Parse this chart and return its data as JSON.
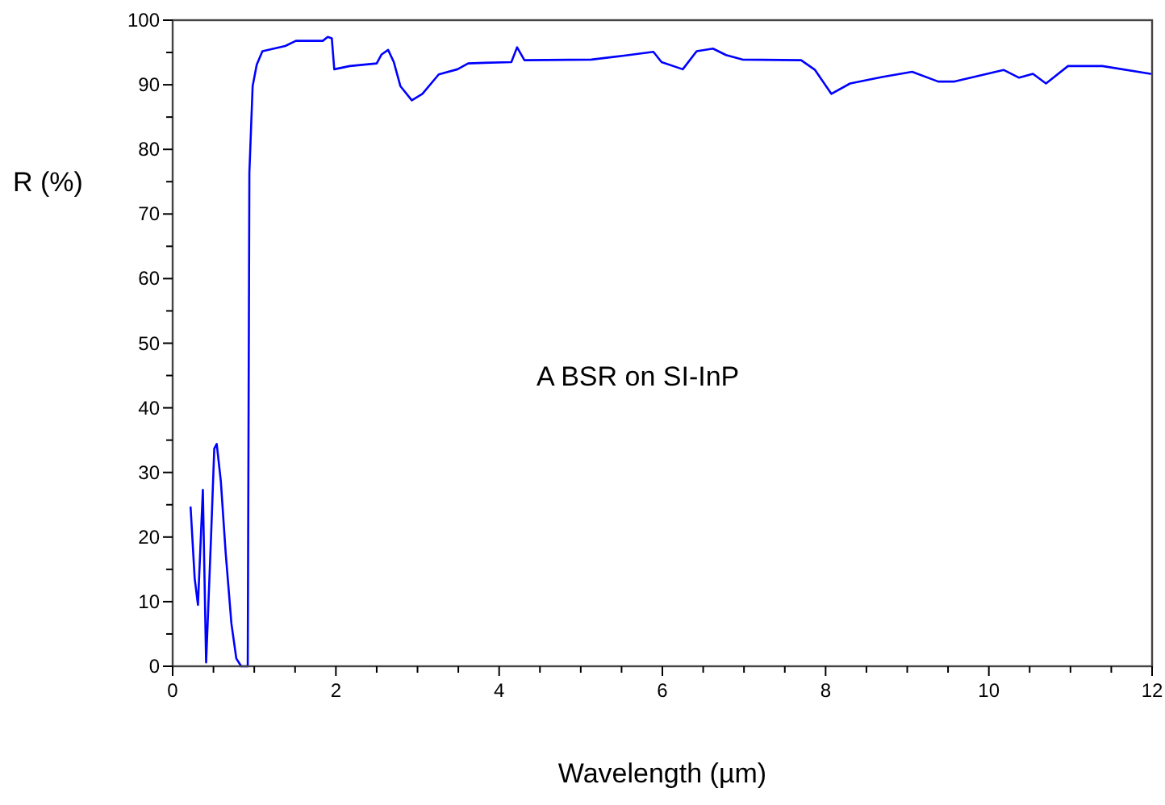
{
  "chart_data": {
    "type": "line",
    "xlabel": "Wavelength (µm)",
    "ylabel": "R (%)",
    "annotations": [
      "A BSR on SI-InP"
    ],
    "xlim": [
      0,
      12
    ],
    "ylim": [
      0,
      100
    ],
    "xticks": [
      0,
      {
        "value": 0.5,
        "label": null
      },
      {
        "value": 1,
        "label": null
      },
      {
        "value": 1.5,
        "label": null
      },
      2,
      {
        "value": 2.5,
        "label": null
      },
      {
        "value": 3,
        "label": null
      },
      {
        "value": 3.5,
        "label": null
      },
      4,
      {
        "value": 4.5,
        "label": null
      },
      {
        "value": 5,
        "label": null
      },
      {
        "value": 5.5,
        "label": null
      },
      6,
      {
        "value": 6.5,
        "label": null
      },
      {
        "value": 7,
        "label": null
      },
      {
        "value": 7.5,
        "label": null
      },
      8,
      {
        "value": 8.5,
        "label": null
      },
      {
        "value": 9,
        "label": null
      },
      {
        "value": 9.5,
        "label": null
      },
      10,
      {
        "value": 10.5,
        "label": null
      },
      {
        "value": 11,
        "label": null
      },
      {
        "value": 11.5,
        "label": null
      },
      12
    ],
    "yticks": [
      0,
      {
        "value": 5,
        "label": null
      },
      10,
      {
        "value": 15,
        "label": null
      },
      20,
      {
        "value": 25,
        "label": null
      },
      30,
      {
        "value": 35,
        "label": null
      },
      40,
      {
        "value": 45,
        "label": null
      },
      50,
      {
        "value": 55,
        "label": null
      },
      60,
      {
        "value": 65,
        "label": null
      },
      70,
      {
        "value": 75,
        "label": null
      },
      80,
      {
        "value": 85,
        "label": null
      },
      90,
      {
        "value": 95,
        "label": null
      },
      100
    ],
    "grid": false,
    "marker": "none",
    "line_style": "solid",
    "series": [
      {
        "color": "#0000ff",
        "x": [
          0.22,
          0.27,
          0.31,
          0.37,
          0.41,
          0.47,
          0.51,
          0.54,
          0.59,
          0.65,
          0.72,
          0.78,
          0.84,
          0.92,
          0.94,
          0.98,
          1.03,
          1.1,
          1.38,
          1.51,
          1.84,
          1.9,
          1.95,
          1.98,
          2.17,
          2.5,
          2.56,
          2.64,
          2.71,
          2.79,
          2.93,
          3.06,
          3.26,
          3.49,
          3.62,
          3.82,
          4.15,
          4.22,
          4.31,
          5.13,
          5.53,
          5.89,
          5.99,
          6.25,
          6.42,
          6.62,
          6.78,
          6.98,
          7.7,
          7.87,
          8.07,
          8.3,
          8.69,
          9.06,
          9.38,
          9.58,
          10.18,
          10.37,
          10.54,
          10.7,
          10.97,
          11.39,
          11.98
        ],
        "values": [
          24.6,
          13.6,
          9.5,
          27.3,
          0.6,
          19.9,
          33.7,
          34.4,
          28.7,
          17.5,
          6.6,
          1.2,
          0,
          0,
          76.4,
          89.8,
          93.1,
          95.2,
          96,
          96.8,
          96.8,
          97.4,
          97.2,
          92.4,
          92.9,
          93.3,
          94.7,
          95.4,
          93.5,
          89.8,
          87.6,
          88.6,
          91.6,
          92.4,
          93.3,
          93.4,
          93.5,
          95.8,
          93.8,
          93.9,
          94.5,
          95.1,
          93.5,
          92.4,
          95.2,
          95.6,
          94.6,
          93.9,
          93.8,
          92.3,
          88.6,
          90.2,
          91.2,
          92,
          90.5,
          90.5,
          92.3,
          91.1,
          91.7,
          90.2,
          92.9,
          92.9,
          91.7
        ]
      }
    ]
  }
}
